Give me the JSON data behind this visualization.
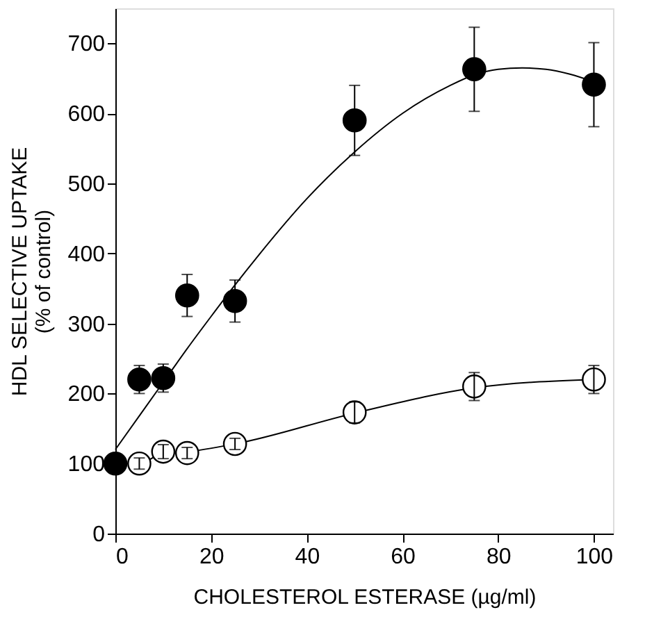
{
  "chart_data": {
    "type": "scatter",
    "xlabel": "CHOLESTEROL ESTERASE (µg/ml)",
    "ylabel": "HDL SELECTIVE UPTAKE\n(% of control)",
    "xlim": [
      0,
      104
    ],
    "ylim": [
      0,
      750
    ],
    "xticks": [
      0,
      20,
      40,
      60,
      80,
      100
    ],
    "yticks": [
      0,
      100,
      200,
      300,
      400,
      500,
      600,
      700
    ],
    "grid": false,
    "marker": "circle",
    "series": [
      {
        "type": "line",
        "color": "#000000",
        "marker": "none",
        "x": [
          0,
          5,
          10,
          15,
          20,
          25,
          30,
          40,
          50,
          60,
          70,
          75,
          80,
          85,
          90,
          95,
          100
        ],
        "values": [
          120,
          168,
          216,
          264,
          310,
          355,
          398,
          478,
          545,
          600,
          640,
          655,
          663,
          665,
          663,
          656,
          645
        ]
      },
      {
        "type": "line",
        "color": "#000000",
        "marker": "none",
        "x": [
          0,
          5,
          10,
          15,
          25,
          50,
          75,
          100
        ],
        "values": [
          100,
          100,
          115,
          117,
          128,
          172,
          208,
          220
        ]
      },
      {
        "color": "#ffffff",
        "x": [
          5,
          10,
          15,
          25,
          50,
          75,
          100
        ],
        "values": [
          100,
          117,
          115,
          128,
          173,
          210,
          220
        ],
        "errors": [
          8,
          10,
          8,
          8,
          15,
          20,
          20
        ]
      },
      {
        "color": "#000000",
        "x": [
          0,
          5,
          10,
          15,
          25,
          50,
          75,
          100
        ],
        "values": [
          100,
          220,
          222,
          340,
          332,
          590,
          663,
          641
        ],
        "errors": [
          null,
          20,
          20,
          30,
          30,
          50,
          60,
          60
        ]
      }
    ]
  }
}
